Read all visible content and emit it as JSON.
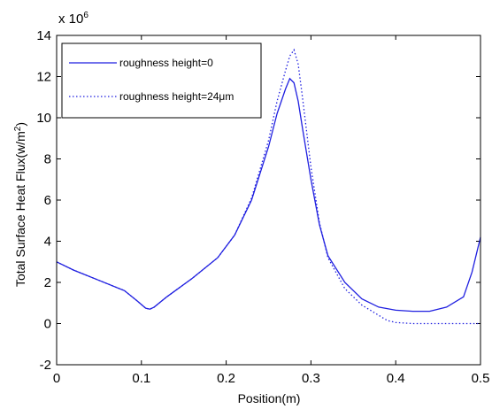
{
  "chart_data": {
    "type": "line",
    "title": "",
    "xlabel": "Position(m)",
    "ylabel": "Total Surface Heat Flux(w/m²)",
    "y_multiplier": "x 10⁶",
    "xlim": [
      0,
      0.5
    ],
    "ylim": [
      -2,
      14
    ],
    "xticks": [
      "0",
      "0.1",
      "0.2",
      "0.3",
      "0.4",
      "0.5"
    ],
    "yticks": [
      "-2",
      "0",
      "2",
      "4",
      "6",
      "8",
      "10",
      "12",
      "14"
    ],
    "grid": false,
    "legend_position": "top-left",
    "series": [
      {
        "name": "roughness height=0",
        "style": "solid",
        "color": "#1f1fe0",
        "x": [
          0,
          0.02,
          0.05,
          0.08,
          0.095,
          0.105,
          0.11,
          0.115,
          0.13,
          0.16,
          0.19,
          0.21,
          0.23,
          0.25,
          0.26,
          0.27,
          0.275,
          0.28,
          0.285,
          0.29,
          0.3,
          0.31,
          0.32,
          0.34,
          0.36,
          0.38,
          0.4,
          0.42,
          0.44,
          0.46,
          0.48,
          0.49,
          0.5
        ],
        "y": [
          3.0,
          2.6,
          2.1,
          1.6,
          1.1,
          0.75,
          0.7,
          0.8,
          1.3,
          2.2,
          3.2,
          4.3,
          6.0,
          8.6,
          10.2,
          11.4,
          11.9,
          11.7,
          10.8,
          9.5,
          7.0,
          4.8,
          3.3,
          2.0,
          1.2,
          0.8,
          0.65,
          0.6,
          0.6,
          0.8,
          1.3,
          2.5,
          4.2
        ]
      },
      {
        "name": "roughness height=24μm",
        "style": "dotted",
        "color": "#1f1fe0",
        "x": [
          0,
          0.02,
          0.05,
          0.08,
          0.095,
          0.105,
          0.11,
          0.115,
          0.13,
          0.16,
          0.19,
          0.21,
          0.23,
          0.25,
          0.26,
          0.27,
          0.275,
          0.28,
          0.285,
          0.29,
          0.3,
          0.31,
          0.32,
          0.34,
          0.36,
          0.38,
          0.39,
          0.4,
          0.42,
          0.44,
          0.46,
          0.48,
          0.5
        ],
        "y": [
          3.0,
          2.6,
          2.1,
          1.6,
          1.1,
          0.75,
          0.7,
          0.8,
          1.3,
          2.2,
          3.2,
          4.3,
          6.1,
          8.9,
          10.8,
          12.3,
          13.0,
          13.3,
          12.6,
          11.0,
          7.6,
          4.9,
          3.2,
          1.7,
          0.9,
          0.4,
          0.15,
          0.05,
          0.0,
          0.0,
          0.0,
          0.0,
          0.0
        ]
      }
    ]
  }
}
